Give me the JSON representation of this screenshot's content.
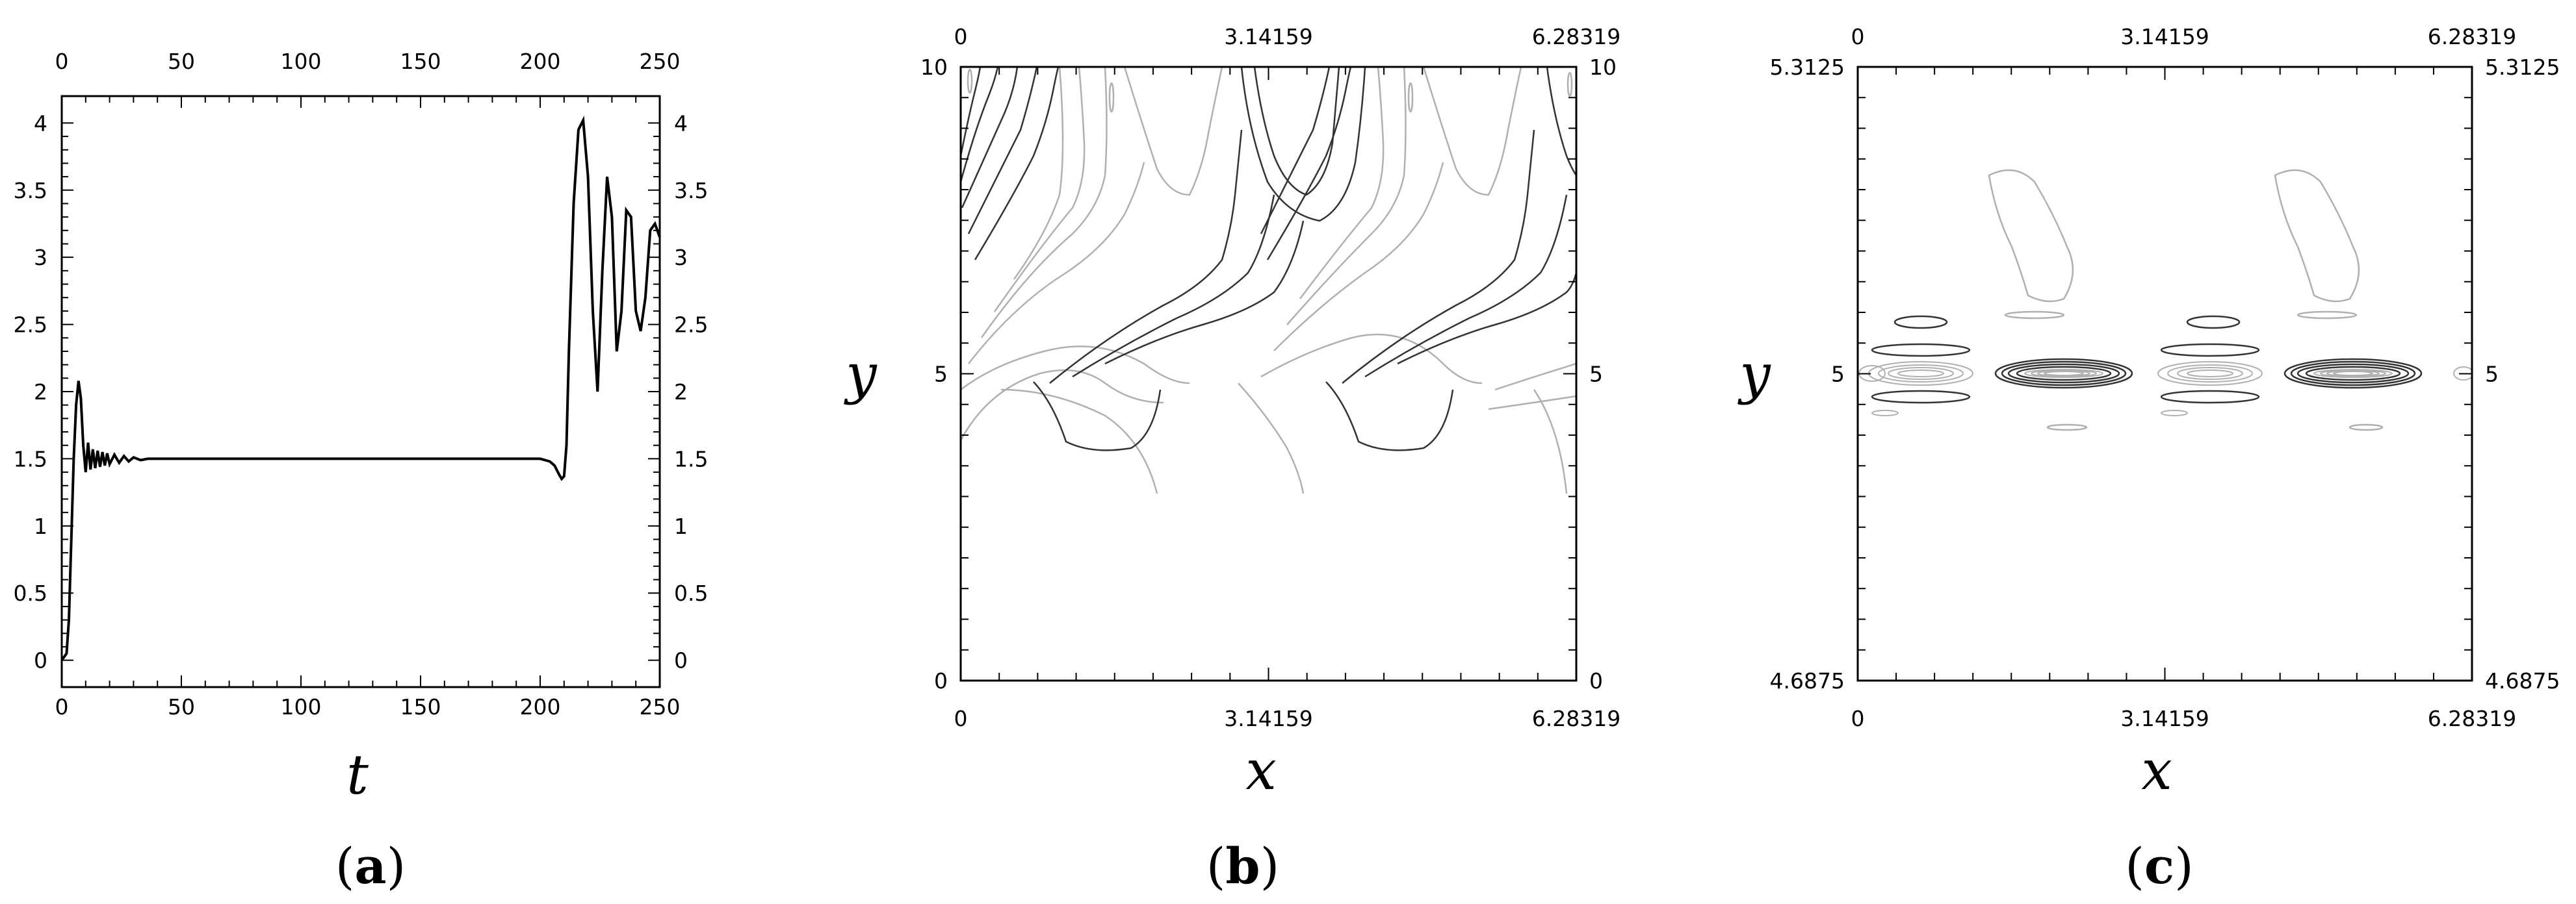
{
  "chart_data": [
    {
      "type": "line",
      "panel_label": "a",
      "xlabel": "t",
      "ylabel": "",
      "xlim": [
        0,
        250
      ],
      "ylim": [
        -0.2,
        4.2
      ],
      "x_ticks": [
        0,
        50,
        100,
        150,
        200,
        250
      ],
      "y_ticks": [
        0,
        0.5,
        1,
        1.5,
        2,
        2.5,
        3,
        3.5,
        4
      ],
      "series": [
        {
          "x": [
            0,
            2,
            3,
            4,
            5,
            6,
            7,
            8,
            9,
            10,
            11,
            12,
            13,
            14,
            15,
            16,
            17,
            18,
            19,
            20,
            22,
            24,
            26,
            28,
            30,
            33,
            36,
            40,
            50,
            100,
            150,
            200,
            204,
            206,
            208,
            209,
            210,
            211,
            212,
            214,
            216,
            218,
            220,
            222,
            224,
            226,
            228,
            230,
            232,
            234,
            236,
            238,
            240,
            242,
            244,
            246,
            248,
            250
          ],
          "y": [
            0,
            0.05,
            0.3,
            0.9,
            1.5,
            1.9,
            2.08,
            1.95,
            1.6,
            1.4,
            1.62,
            1.42,
            1.57,
            1.43,
            1.56,
            1.44,
            1.55,
            1.45,
            1.54,
            1.46,
            1.53,
            1.47,
            1.52,
            1.48,
            1.51,
            1.49,
            1.5,
            1.5,
            1.5,
            1.5,
            1.5,
            1.5,
            1.48,
            1.45,
            1.38,
            1.35,
            1.37,
            1.6,
            2.3,
            3.4,
            3.95,
            4.02,
            3.6,
            2.6,
            2.0,
            2.9,
            3.6,
            3.3,
            2.3,
            2.6,
            3.35,
            3.3,
            2.6,
            2.45,
            2.7,
            3.2,
            3.25,
            3.15
          ]
        }
      ]
    },
    {
      "type": "contour",
      "panel_label": "b",
      "xlabel": "x",
      "ylabel": "y",
      "xlim": [
        0,
        6.28319
      ],
      "ylim": [
        0,
        10
      ],
      "x_tick_labels": [
        "0",
        "3.14159",
        "6.28319"
      ],
      "y_tick_labels": [
        "0",
        "5",
        "10"
      ],
      "line_colors": [
        "#333333",
        "#b0b0b0"
      ]
    },
    {
      "type": "contour",
      "panel_label": "c",
      "xlabel": "x",
      "ylabel": "y",
      "xlim": [
        0,
        6.28319
      ],
      "ylim": [
        4.6875,
        5.3125
      ],
      "x_tick_labels": [
        "0",
        "3.14159",
        "6.28319"
      ],
      "y_tick_labels": [
        "4.6875",
        "5",
        "5.3125"
      ],
      "line_colors": [
        "#333333",
        "#b0b0b0"
      ]
    }
  ]
}
